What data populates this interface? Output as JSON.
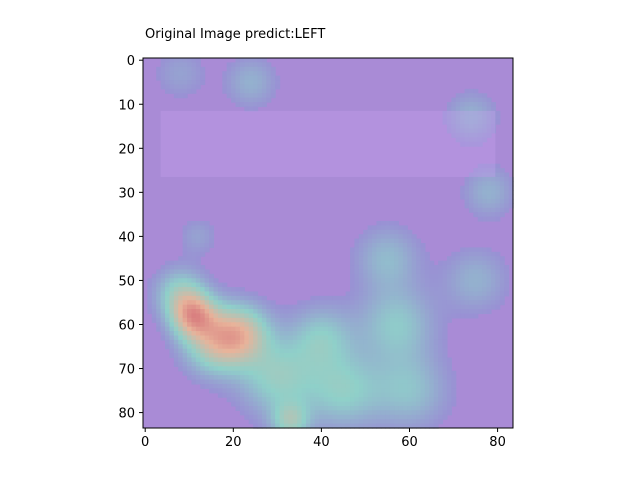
{
  "chart_data": {
    "type": "heatmap",
    "title": "Original Image predict:LEFT",
    "xlabel": "",
    "ylabel": "",
    "xlim": [
      -0.5,
      83.5
    ],
    "ylim": [
      83.5,
      -0.5
    ],
    "x_ticks": [
      0,
      20,
      40,
      60,
      80
    ],
    "y_ticks": [
      0,
      10,
      20,
      30,
      40,
      50,
      60,
      70,
      80
    ],
    "grid": false,
    "colors": {
      "background_overlay": "#a98bd6",
      "low": "#9b84d6",
      "mid": "#8fd0c9",
      "high": "#e8b39a",
      "peak": "#d98080"
    },
    "hotspots": [
      {
        "x": 11,
        "y": 58,
        "intensity": 1.0,
        "spread": 3.5
      },
      {
        "x": 16,
        "y": 64,
        "intensity": 0.8,
        "spread": 5
      },
      {
        "x": 22,
        "y": 62,
        "intensity": 0.75,
        "spread": 4.5
      },
      {
        "x": 8,
        "y": 53,
        "intensity": 0.55,
        "spread": 4
      },
      {
        "x": 30,
        "y": 72,
        "intensity": 0.55,
        "spread": 6
      },
      {
        "x": 40,
        "y": 63,
        "intensity": 0.45,
        "spread": 5
      },
      {
        "x": 45,
        "y": 75,
        "intensity": 0.5,
        "spread": 6
      },
      {
        "x": 57,
        "y": 60,
        "intensity": 0.45,
        "spread": 6
      },
      {
        "x": 60,
        "y": 75,
        "intensity": 0.4,
        "spread": 6
      },
      {
        "x": 55,
        "y": 45,
        "intensity": 0.35,
        "spread": 5
      },
      {
        "x": 75,
        "y": 50,
        "intensity": 0.3,
        "spread": 5
      },
      {
        "x": 78,
        "y": 30,
        "intensity": 0.3,
        "spread": 4
      },
      {
        "x": 74,
        "y": 13,
        "intensity": 0.3,
        "spread": 4
      },
      {
        "x": 24,
        "y": 5,
        "intensity": 0.3,
        "spread": 4
      },
      {
        "x": 8,
        "y": 3,
        "intensity": 0.2,
        "spread": 4
      },
      {
        "x": 12,
        "y": 40,
        "intensity": 0.2,
        "spread": 3
      },
      {
        "x": 33,
        "y": 82,
        "intensity": 0.55,
        "spread": 3
      }
    ]
  }
}
